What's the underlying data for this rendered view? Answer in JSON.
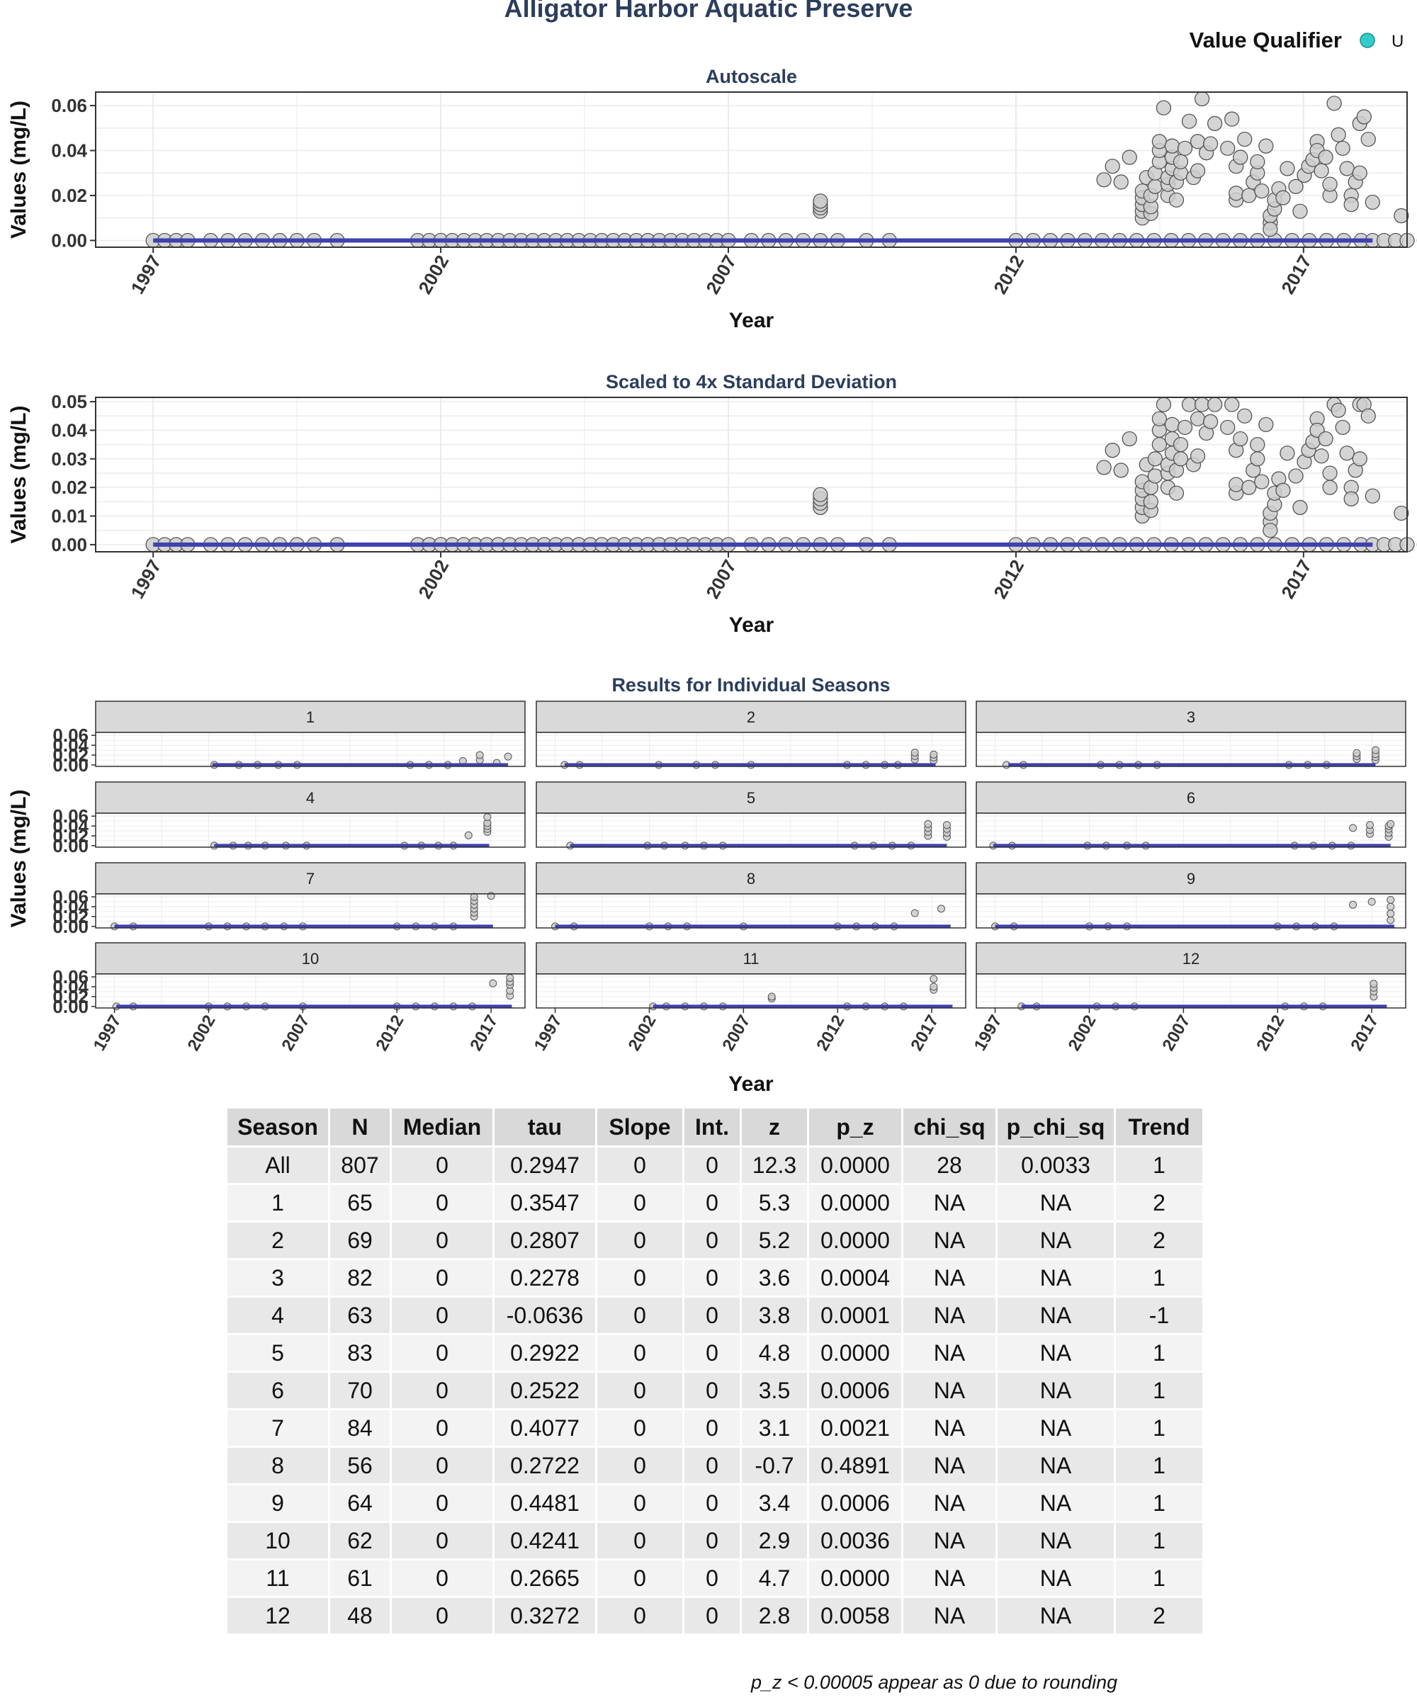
{
  "page_title": "Alligator Harbor Aquatic Preserve",
  "legend": {
    "title": "Value Qualifier",
    "items": [
      {
        "label": "U",
        "color": "#33cccc"
      }
    ]
  },
  "colors": {
    "title": "#2c3e5c",
    "point_fill": "#cccccc",
    "point_stroke": "#555555",
    "trend_line": "#4040b0",
    "strip": "#d9d9d9",
    "grid": "#ebebeb"
  },
  "chart_data": [
    {
      "type": "scatter",
      "title": "Autoscale",
      "xlabel": "Year",
      "ylabel": "Values (mg/L)",
      "xlim": [
        1996.0,
        2018.8
      ],
      "ylim": [
        -0.003,
        0.066
      ],
      "x_ticks": [
        "1997",
        "2002",
        "2007",
        "2012",
        "2017"
      ],
      "y_ticks": [
        "0.00",
        "0.02",
        "0.04",
        "0.06"
      ],
      "y_tick_values": [
        0,
        0.02,
        0.04,
        0.06
      ],
      "grid": true,
      "trend_line": {
        "x": [
          1997.0,
          2018.2
        ],
        "y": [
          0,
          0
        ]
      }
    },
    {
      "type": "scatter",
      "title": "Scaled to 4x Standard Deviation",
      "xlabel": "Year",
      "ylabel": "Values (mg/L)",
      "xlim": [
        1996.0,
        2018.8
      ],
      "ylim": [
        -0.0025,
        0.0515
      ],
      "x_ticks": [
        "1997",
        "2002",
        "2007",
        "2012",
        "2017"
      ],
      "y_ticks": [
        "0.00",
        "0.01",
        "0.02",
        "0.03",
        "0.04",
        "0.05"
      ],
      "y_tick_values": [
        0,
        0.01,
        0.02,
        0.03,
        0.04,
        0.05
      ],
      "grid": true,
      "trend_line": {
        "x": [
          1997.0,
          2018.2
        ],
        "y": [
          0,
          0
        ]
      }
    },
    {
      "type": "scatter",
      "title": "Results for Individual Seasons",
      "xlabel": "Year",
      "ylabel": "Values (mg/L)",
      "xlim": [
        1996.0,
        2018.8
      ],
      "ylim": [
        -0.003,
        0.066
      ],
      "x_ticks": [
        "1997",
        "2002",
        "2007",
        "2012",
        "2017"
      ],
      "y_ticks": [
        "0.00",
        "0.02",
        "0.04",
        "0.06"
      ],
      "y_tick_values": [
        0,
        0.02,
        0.04,
        0.06
      ],
      "grid": true,
      "facets": [
        {
          "label": "1",
          "line": [
            2002.2,
            2017.9
          ],
          "points": [
            [
              2002.3,
              0
            ],
            [
              2003.6,
              0
            ],
            [
              2004.6,
              0
            ],
            [
              2005.7,
              0
            ],
            [
              2006.7,
              0
            ],
            [
              2012.7,
              0
            ],
            [
              2013.7,
              0
            ],
            [
              2014.7,
              0
            ],
            [
              2015.5,
              0.008
            ],
            [
              2016.4,
              0.01
            ],
            [
              2016.4,
              0.02
            ],
            [
              2017.3,
              0.004
            ],
            [
              2017.9,
              0.017
            ]
          ]
        },
        {
          "label": "2",
          "line": [
            1997.5,
            2017.2
          ],
          "points": [
            [
              1997.5,
              0
            ],
            [
              1998.3,
              0
            ],
            [
              2002.5,
              0
            ],
            [
              2004.5,
              0
            ],
            [
              2005.5,
              0
            ],
            [
              2007.4,
              0
            ],
            [
              2012.5,
              0
            ],
            [
              2013.5,
              0
            ],
            [
              2014.5,
              0
            ],
            [
              2015.2,
              0
            ],
            [
              2016.1,
              0.011
            ],
            [
              2016.1,
              0.018
            ],
            [
              2016.1,
              0.025
            ],
            [
              2017.1,
              0.009
            ],
            [
              2017.1,
              0.015
            ],
            [
              2017.1,
              0.021
            ]
          ]
        },
        {
          "label": "3",
          "line": [
            1997.7,
            2017.2
          ],
          "points": [
            [
              1997.6,
              0
            ],
            [
              1998.5,
              0
            ],
            [
              2002.6,
              0
            ],
            [
              2003.6,
              0
            ],
            [
              2004.6,
              0
            ],
            [
              2005.6,
              0
            ],
            [
              2012.6,
              0
            ],
            [
              2013.6,
              0
            ],
            [
              2014.6,
              0
            ],
            [
              2016.2,
              0.012
            ],
            [
              2016.2,
              0.018
            ],
            [
              2016.2,
              0.024
            ],
            [
              2017.2,
              0.01
            ],
            [
              2017.2,
              0.016
            ],
            [
              2017.2,
              0.022
            ],
            [
              2017.2,
              0.03
            ]
          ]
        },
        {
          "label": "4",
          "line": [
            2002.3,
            2016.9
          ],
          "points": [
            [
              2002.3,
              0
            ],
            [
              2003.3,
              0
            ],
            [
              2004.1,
              0
            ],
            [
              2005.0,
              0
            ],
            [
              2006.1,
              0
            ],
            [
              2007.2,
              0
            ],
            [
              2012.4,
              0
            ],
            [
              2013.3,
              0
            ],
            [
              2014.2,
              0
            ],
            [
              2015.0,
              0
            ],
            [
              2015.8,
              0.021
            ],
            [
              2016.8,
              0.028
            ],
            [
              2016.8,
              0.034
            ],
            [
              2016.8,
              0.04
            ],
            [
              2016.8,
              0.046
            ],
            [
              2016.8,
              0.058
            ]
          ]
        },
        {
          "label": "5",
          "line": [
            1997.8,
            2017.8
          ],
          "points": [
            [
              1997.8,
              0
            ],
            [
              2001.9,
              0
            ],
            [
              2002.8,
              0
            ],
            [
              2003.9,
              0
            ],
            [
              2004.9,
              0
            ],
            [
              2005.9,
              0
            ],
            [
              2012.9,
              0
            ],
            [
              2013.9,
              0
            ],
            [
              2014.9,
              0
            ],
            [
              2015.9,
              0
            ],
            [
              2016.8,
              0.02
            ],
            [
              2016.8,
              0.028
            ],
            [
              2016.8,
              0.036
            ],
            [
              2016.8,
              0.044
            ],
            [
              2017.8,
              0.018
            ],
            [
              2017.8,
              0.026
            ],
            [
              2017.8,
              0.034
            ],
            [
              2017.8,
              0.042
            ]
          ]
        },
        {
          "label": "6",
          "line": [
            1996.9,
            2018.0
          ],
          "points": [
            [
              1996.9,
              0
            ],
            [
              1997.9,
              0
            ],
            [
              2001.9,
              0
            ],
            [
              2002.9,
              0
            ],
            [
              2004.0,
              0
            ],
            [
              2005.0,
              0
            ],
            [
              2012.9,
              0
            ],
            [
              2013.9,
              0
            ],
            [
              2014.9,
              0
            ],
            [
              2015.9,
              0
            ],
            [
              2016.0,
              0.036
            ],
            [
              2016.9,
              0.024
            ],
            [
              2016.9,
              0.032
            ],
            [
              2016.9,
              0.042
            ],
            [
              2017.9,
              0.018
            ],
            [
              2017.9,
              0.026
            ],
            [
              2017.9,
              0.034
            ],
            [
              2017.9,
              0.04
            ],
            [
              2018.0,
              0.044
            ]
          ]
        },
        {
          "label": "7",
          "line": [
            1997.0,
            2017.1
          ],
          "points": [
            [
              1997.0,
              0
            ],
            [
              1998.0,
              0
            ],
            [
              2002.0,
              0
            ],
            [
              2003.0,
              0
            ],
            [
              2004.0,
              0
            ],
            [
              2005.0,
              0
            ],
            [
              2006.0,
              0
            ],
            [
              2007.0,
              0
            ],
            [
              2012.0,
              0
            ],
            [
              2013.0,
              0
            ],
            [
              2014.0,
              0
            ],
            [
              2015.0,
              0
            ],
            [
              2016.1,
              0.02
            ],
            [
              2016.1,
              0.028
            ],
            [
              2016.1,
              0.036
            ],
            [
              2016.1,
              0.044
            ],
            [
              2016.1,
              0.052
            ],
            [
              2016.1,
              0.06
            ],
            [
              2017.0,
              0.062
            ]
          ]
        },
        {
          "label": "8",
          "line": [
            1997.0,
            2018.0
          ],
          "points": [
            [
              1997.0,
              0
            ],
            [
              1998.0,
              0
            ],
            [
              2002.0,
              0
            ],
            [
              2003.0,
              0
            ],
            [
              2004.0,
              0
            ],
            [
              2007.0,
              0
            ],
            [
              2012.0,
              0
            ],
            [
              2013.0,
              0
            ],
            [
              2014.0,
              0
            ],
            [
              2015.0,
              0
            ],
            [
              2016.1,
              0.027
            ],
            [
              2017.5,
              0.036
            ]
          ]
        },
        {
          "label": "9",
          "line": [
            1997.0,
            2018.2
          ],
          "points": [
            [
              1997.0,
              0
            ],
            [
              1998.0,
              0
            ],
            [
              2002.0,
              0
            ],
            [
              2003.0,
              0
            ],
            [
              2004.0,
              0
            ],
            [
              2012.0,
              0
            ],
            [
              2013.0,
              0
            ],
            [
              2014.0,
              0
            ],
            [
              2015.0,
              0
            ],
            [
              2016.0,
              0.044
            ],
            [
              2017.0,
              0.05
            ],
            [
              2018.0,
              0.013
            ],
            [
              2018.0,
              0.026
            ],
            [
              2018.0,
              0.04
            ],
            [
              2018.0,
              0.054
            ]
          ]
        },
        {
          "label": "10",
          "line": [
            1997.1,
            2018.1
          ],
          "points": [
            [
              1997.1,
              0
            ],
            [
              1998.0,
              0
            ],
            [
              2002.0,
              0
            ],
            [
              2003.0,
              0
            ],
            [
              2004.0,
              0
            ],
            [
              2005.0,
              0
            ],
            [
              2007.0,
              0
            ],
            [
              2012.0,
              0
            ],
            [
              2013.0,
              0
            ],
            [
              2014.0,
              0
            ],
            [
              2015.0,
              0
            ],
            [
              2016.0,
              0
            ],
            [
              2017.1,
              0.047
            ],
            [
              2018.0,
              0.022
            ],
            [
              2018.0,
              0.032
            ],
            [
              2018.0,
              0.044
            ],
            [
              2018.0,
              0.05
            ],
            [
              2018.0,
              0.058
            ]
          ]
        },
        {
          "label": "11",
          "line": [
            2002.2,
            2018.1
          ],
          "points": [
            [
              2002.2,
              0
            ],
            [
              2002.9,
              0
            ],
            [
              2003.9,
              0
            ],
            [
              2004.9,
              0
            ],
            [
              2005.9,
              0
            ],
            [
              2008.5,
              0.016
            ],
            [
              2008.5,
              0.02
            ],
            [
              2012.5,
              0
            ],
            [
              2013.5,
              0
            ],
            [
              2014.5,
              0
            ],
            [
              2015.5,
              0
            ],
            [
              2017.1,
              0.034
            ],
            [
              2017.1,
              0.04
            ],
            [
              2017.1,
              0.056
            ]
          ]
        },
        {
          "label": "12",
          "line": [
            1998.4,
            2017.8
          ],
          "points": [
            [
              1998.4,
              0
            ],
            [
              1999.2,
              0
            ],
            [
              2002.4,
              0
            ],
            [
              2003.4,
              0
            ],
            [
              2004.4,
              0
            ],
            [
              2012.4,
              0
            ],
            [
              2013.4,
              0
            ],
            [
              2014.4,
              0
            ],
            [
              2017.1,
              0.02
            ],
            [
              2017.1,
              0.03
            ],
            [
              2017.1,
              0.038
            ],
            [
              2017.1,
              0.046
            ]
          ]
        }
      ]
    }
  ],
  "table": {
    "columns": [
      "Season",
      "N",
      "Median",
      "tau",
      "Slope",
      "Int.",
      "z",
      "p_z",
      "chi_sq",
      "p_chi_sq",
      "Trend"
    ],
    "rows": [
      [
        "All",
        "807",
        "0",
        "0.2947",
        "0",
        "0",
        "12.3",
        "0.0000",
        "28",
        "0.0033",
        "1"
      ],
      [
        "1",
        "65",
        "0",
        "0.3547",
        "0",
        "0",
        "5.3",
        "0.0000",
        "NA",
        "NA",
        "2"
      ],
      [
        "2",
        "69",
        "0",
        "0.2807",
        "0",
        "0",
        "5.2",
        "0.0000",
        "NA",
        "NA",
        "2"
      ],
      [
        "3",
        "82",
        "0",
        "0.2278",
        "0",
        "0",
        "3.6",
        "0.0004",
        "NA",
        "NA",
        "1"
      ],
      [
        "4",
        "63",
        "0",
        "-0.0636",
        "0",
        "0",
        "3.8",
        "0.0001",
        "NA",
        "NA",
        "-1"
      ],
      [
        "5",
        "83",
        "0",
        "0.2922",
        "0",
        "0",
        "4.8",
        "0.0000",
        "NA",
        "NA",
        "1"
      ],
      [
        "6",
        "70",
        "0",
        "0.2522",
        "0",
        "0",
        "3.5",
        "0.0006",
        "NA",
        "NA",
        "1"
      ],
      [
        "7",
        "84",
        "0",
        "0.4077",
        "0",
        "0",
        "3.1",
        "0.0021",
        "NA",
        "NA",
        "1"
      ],
      [
        "8",
        "56",
        "0",
        "0.2722",
        "0",
        "0",
        "-0.7",
        "0.4891",
        "NA",
        "NA",
        "1"
      ],
      [
        "9",
        "64",
        "0",
        "0.4481",
        "0",
        "0",
        "3.4",
        "0.0006",
        "NA",
        "NA",
        "1"
      ],
      [
        "10",
        "62",
        "0",
        "0.4241",
        "0",
        "0",
        "2.9",
        "0.0036",
        "NA",
        "NA",
        "1"
      ],
      [
        "11",
        "61",
        "0",
        "0.2665",
        "0",
        "0",
        "4.7",
        "0.0000",
        "NA",
        "NA",
        "1"
      ],
      [
        "12",
        "48",
        "0",
        "0.3272",
        "0",
        "0",
        "2.8",
        "0.0058",
        "NA",
        "NA",
        "2"
      ]
    ]
  },
  "footnote": "p_z < 0.00005 appear as 0 due to rounding"
}
